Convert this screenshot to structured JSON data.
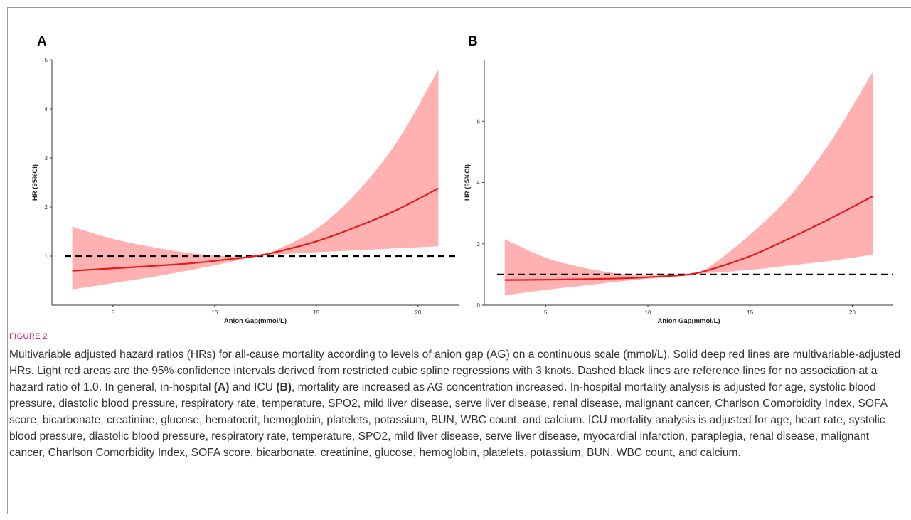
{
  "figure_label": "FIGURE 2",
  "caption": {
    "p1": "Multivariable adjusted hazard ratios (HRs) for all-cause mortality according to levels of anion gap (AG) on a continuous scale (mmol/L). Solid deep red lines are multivariable-adjusted HRs. Light red areas are the 95% confidence intervals derived from restricted cubic spline regressions with 3 knots. Dashed black lines are reference lines for no association at a hazard ratio of 1.0. In general, in-hospital ",
    "ref_a": "(A)",
    "p2": " and ICU ",
    "ref_b": "(B)",
    "p3": ", mortality are increased as AG concentration increased. In-hospital mortality analysis is adjusted for age, systolic blood pressure, diastolic blood pressure, respiratory rate, temperature, SPO2, mild liver disease, serve liver disease, renal disease, malignant cancer, Charlson Comorbidity Index, SOFA score, bicarbonate, creatinine, glucose, hematocrit, hemoglobin, platelets, potassium, BUN, WBC count, and calcium. ICU mortality analysis is adjusted for age, heart rate, systolic blood pressure, diastolic blood pressure, respiratory rate, temperature, SPO2, mild liver disease, serve liver disease, myocardial infarction, paraplegia, renal disease, malignant cancer, Charlson Comorbidity Index, SOFA score, bicarbonate, creatinine, glucose, hemoglobin, platelets, potassium, BUN, WBC count, and calcium."
  },
  "colors": {
    "line": "#e8191c",
    "band": "#ffb0b0",
    "reference": "#000000",
    "axis": "#333333",
    "text": "#333333"
  },
  "chart_data": [
    {
      "panel": "A",
      "type": "line",
      "xlabel": "Anion Gap(mmol/L)",
      "ylabel": "HR (95%CI)",
      "xlim": [
        2,
        22
      ],
      "ylim": [
        0,
        5
      ],
      "xticks": [
        5,
        10,
        15,
        20
      ],
      "yticks": [
        1,
        2,
        3,
        4,
        5
      ],
      "grid": false,
      "reference_line": 1.0,
      "series": [
        {
          "x": [
            3,
            5,
            7,
            9,
            11,
            12,
            13,
            15,
            17,
            19,
            21
          ],
          "y": [
            0.7,
            0.75,
            0.8,
            0.86,
            0.95,
            1.0,
            1.08,
            1.3,
            1.6,
            1.95,
            2.38
          ],
          "lower": [
            0.32,
            0.45,
            0.58,
            0.73,
            0.9,
            1.0,
            1.03,
            1.08,
            1.12,
            1.16,
            1.2
          ],
          "upper": [
            1.6,
            1.35,
            1.18,
            1.05,
            0.99,
            1.0,
            1.12,
            1.55,
            2.3,
            3.35,
            4.8
          ]
        }
      ]
    },
    {
      "panel": "B",
      "type": "line",
      "xlabel": "Anion Gap(mmol/L)",
      "ylabel": "HR (95%CI)",
      "xlim": [
        2,
        22
      ],
      "ylim": [
        0,
        8
      ],
      "xticks": [
        5,
        10,
        15,
        20
      ],
      "yticks": [
        0,
        2,
        4,
        6
      ],
      "grid": false,
      "reference_line": 1.0,
      "series": [
        {
          "x": [
            3,
            5,
            7,
            9,
            11,
            12,
            13,
            15,
            17,
            19,
            21
          ],
          "y": [
            0.82,
            0.83,
            0.85,
            0.88,
            0.95,
            1.0,
            1.15,
            1.6,
            2.2,
            2.85,
            3.55
          ],
          "lower": [
            0.32,
            0.5,
            0.65,
            0.8,
            0.92,
            1.0,
            1.05,
            1.15,
            1.3,
            1.45,
            1.65
          ],
          "upper": [
            2.15,
            1.55,
            1.2,
            1.0,
            0.97,
            1.0,
            1.25,
            2.3,
            3.6,
            5.4,
            7.6
          ]
        }
      ]
    }
  ]
}
